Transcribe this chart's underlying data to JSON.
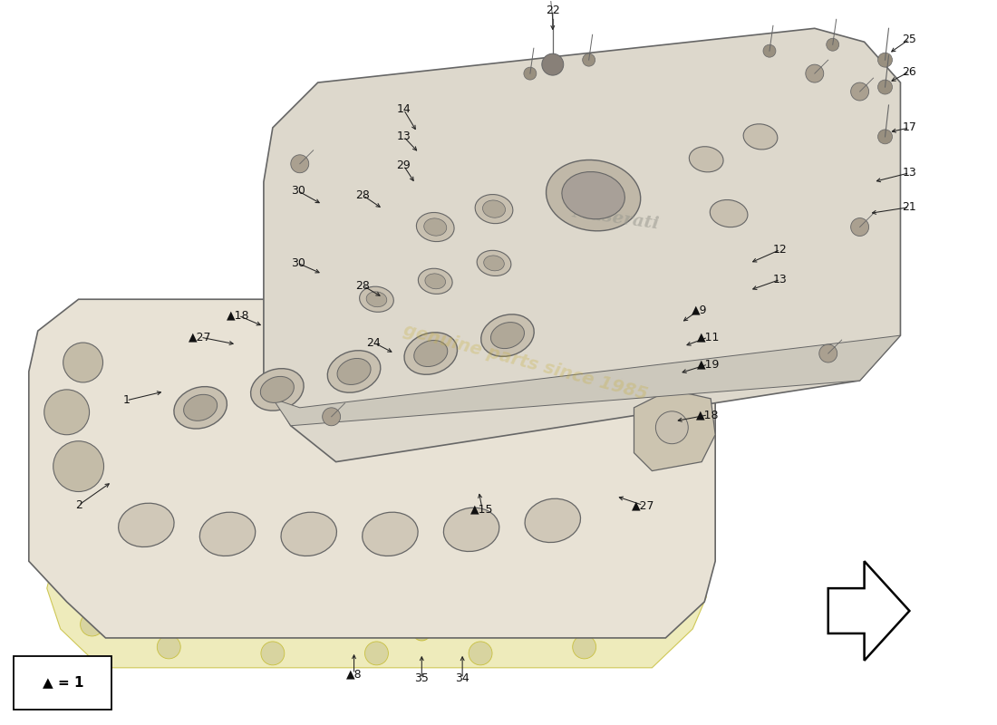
{
  "bg_color": "#ffffff",
  "body_color": "#e8e2d5",
  "body_edge": "#666666",
  "cover_color": "#ddd8cc",
  "cover_edge": "#666666",
  "gasket_color": "#ece8b0",
  "gasket_edge": "#c8c040",
  "hole_color": "#c8c0b0",
  "hole_inner": "#b0a898",
  "watermark_text": "genuine parts since 1985",
  "watermark_color": "#c8b040",
  "watermark_alpha": 0.3,
  "arrow_color": "#222222",
  "label_fontsize": 9,
  "legend_text": "▲ = 1"
}
